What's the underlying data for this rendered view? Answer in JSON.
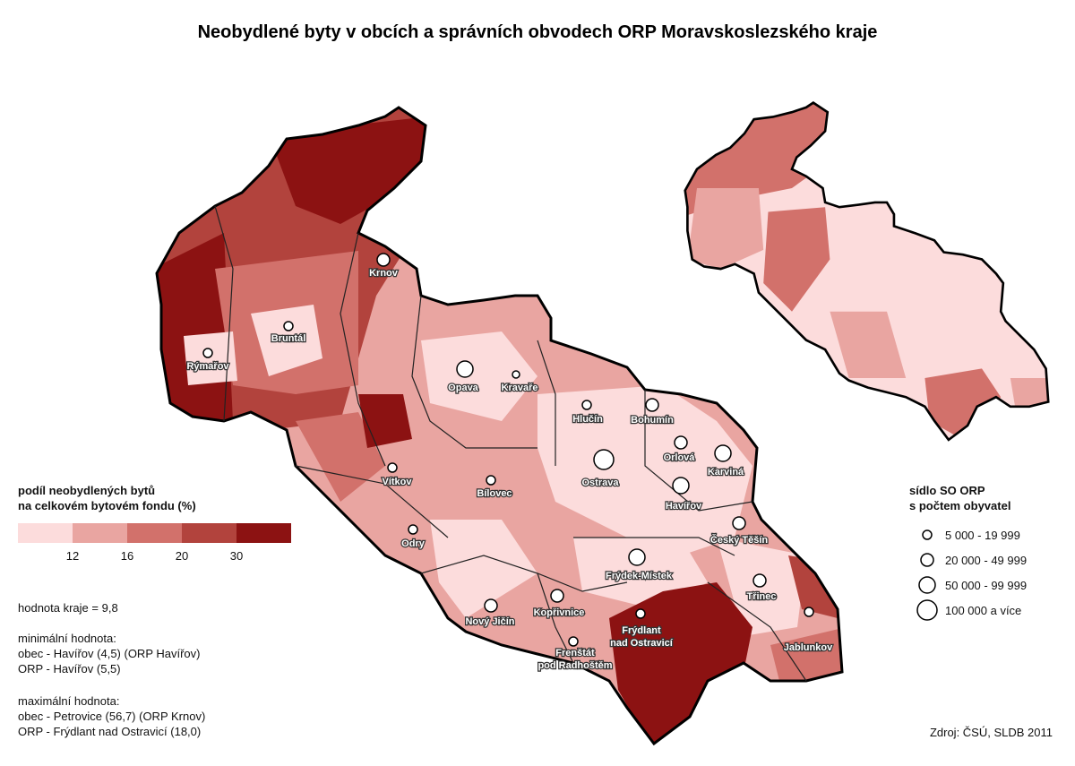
{
  "title": "Neobydlené byty v obcích a správních obvodech ORP Moravskoslezského kraje",
  "legend_share": {
    "title": [
      "podíl neobydlených bytů",
      "na celkovém bytovém fondu (%)"
    ],
    "colors": [
      "#fcdcdc",
      "#e9a5a1",
      "#d2716b",
      "#b2433d",
      "#8c1212"
    ],
    "breaks": [
      12,
      16,
      20,
      30
    ]
  },
  "stats": {
    "region": "hodnota kraje = 9,8",
    "min": [
      "minimální hodnota:",
      "obec - Havířov (4,5) (ORP Havířov)",
      "ORP - Havířov (5,5)"
    ],
    "max": [
      "maximální hodnota:",
      "obec - Petrovice (56,7) (ORP Krnov)",
      "ORP - Frýdlant nad Ostravicí (18,0)"
    ]
  },
  "legend_size": {
    "title": [
      "sídlo SO ORP",
      "s počtem obyvatel"
    ],
    "items": [
      "5 000 - 19 999",
      "20 000 - 49 999",
      "50 000 - 99 999",
      "100 000 a více"
    ]
  },
  "cities": [
    [
      "Krnov"
    ],
    [
      "Bruntál"
    ],
    [
      "Rýmařov"
    ],
    [
      "Opava"
    ],
    [
      "Kravaře"
    ],
    [
      "Hlučín"
    ],
    [
      "Bohumín"
    ],
    [
      "Orlová"
    ],
    [
      "Karviná"
    ],
    [
      "Ostrava"
    ],
    [
      "Havířov"
    ],
    [
      "Vítkov"
    ],
    [
      "Bílovec"
    ],
    [
      "Český Těšín"
    ],
    [
      "Odry"
    ],
    [
      "Frýdek-Místek"
    ],
    [
      "Třinec"
    ],
    [
      "Kopřivnice"
    ],
    [
      "Nový Jičín"
    ],
    [
      "Frýdlant",
      "nad Ostravicí"
    ],
    [
      "Jablunkov"
    ],
    [
      "Frenštát",
      "pod Radhoštěm"
    ]
  ],
  "source": "Zdroj: ČSÚ, SLDB 2011"
}
